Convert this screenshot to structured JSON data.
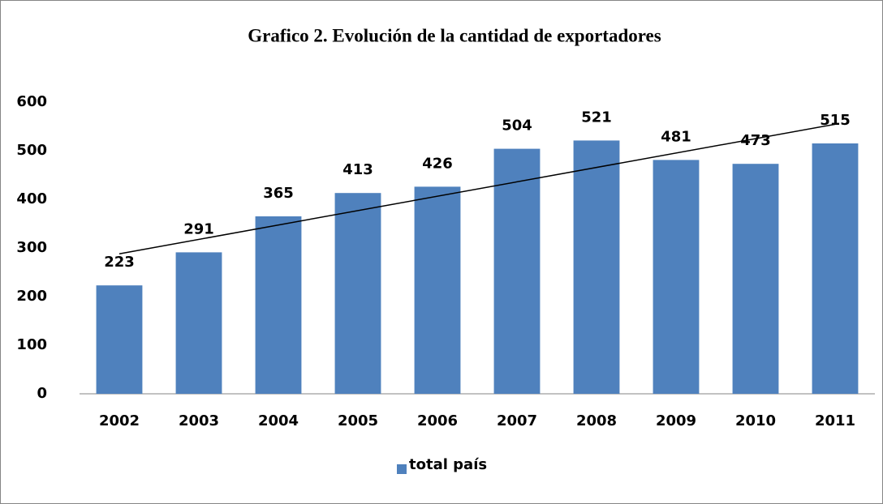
{
  "chart_data": {
    "type": "bar",
    "title": "Grafico 2. Evolución de la cantidad de exportadores",
    "categories": [
      "2002",
      "2003",
      "2004",
      "2005",
      "2006",
      "2007",
      "2008",
      "2009",
      "2010",
      "2011"
    ],
    "series": [
      {
        "name": "total país",
        "color": "#4f81bd",
        "values": [
          223,
          291,
          365,
          413,
          426,
          504,
          521,
          481,
          473,
          515
        ]
      }
    ],
    "ylim": [
      0,
      600
    ],
    "yticks": [
      0,
      100,
      200,
      300,
      400,
      500,
      600
    ],
    "grid": false,
    "trendline": "linear",
    "legend": "bottom"
  }
}
